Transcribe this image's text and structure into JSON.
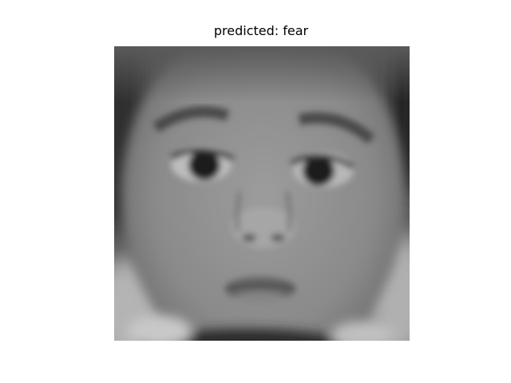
{
  "title": "predicted: fear"
}
